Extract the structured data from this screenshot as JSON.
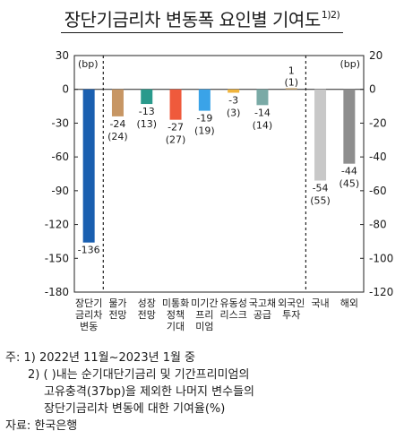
{
  "title": "장단기금리차 변동폭 요인별 기여도",
  "title_sup": "1)2)",
  "chart_data": {
    "type": "bar",
    "left_axis": {
      "unit": "(bp)",
      "ylim": [
        -180,
        30
      ],
      "ticks": [
        30,
        0,
        -30,
        -60,
        -90,
        -120,
        -150,
        -180
      ]
    },
    "right_axis": {
      "unit": "(bp)",
      "ylim": [
        -120,
        20
      ],
      "ticks": [
        20,
        0,
        -20,
        -40,
        -60,
        -80,
        -100,
        -120
      ]
    },
    "bars": [
      {
        "category": "장단기\n금리차\n변동",
        "value": -136,
        "label": "-136",
        "sublabel": "",
        "axis": "left",
        "color": "#1a5fb0"
      },
      {
        "category": "물가\n전망",
        "value": -24,
        "label": "-24",
        "sublabel": "(24)",
        "axis": "left",
        "color": "#c79664"
      },
      {
        "category": "성장\n전망",
        "value": -13,
        "label": "-13",
        "sublabel": "(13)",
        "axis": "left",
        "color": "#2a9a8c"
      },
      {
        "category": "미통화\n정책\n기대",
        "value": -27,
        "label": "-27",
        "sublabel": "(27)",
        "axis": "left",
        "color": "#ef5a3c"
      },
      {
        "category": "미기간\n프리\n미엄",
        "value": -19,
        "label": "-19",
        "sublabel": "(19)",
        "axis": "left",
        "color": "#3aa3e8"
      },
      {
        "category": "유동성\n리스크",
        "value": -3,
        "label": "-3",
        "sublabel": "(3)",
        "axis": "left",
        "color": "#f0b43c"
      },
      {
        "category": "국고채\n공급",
        "value": -14,
        "label": "-14",
        "sublabel": "(14)",
        "axis": "left",
        "color": "#7aaaa6"
      },
      {
        "category": "외국인\n투자",
        "value": 1,
        "label": "1",
        "sublabel": "(1)",
        "axis": "left",
        "color": "#c9a46a"
      },
      {
        "category": "국내",
        "value": -54,
        "label": "-54",
        "sublabel": "(55)",
        "axis": "right",
        "color": "#c8c8c8"
      },
      {
        "category": "해외",
        "value": -44,
        "label": "-44",
        "sublabel": "(45)",
        "axis": "right",
        "color": "#8e8e8e"
      }
    ],
    "dashed_separators_after": [
      0,
      7
    ]
  },
  "notes": {
    "note1": "주: 1) 2022년 11월~2023년 1월 중",
    "note2a": "2) ( )내는 순기대단기금리 및 기간프리미엄의",
    "note2b": "고유충격(37bp)을 제외한 나머지 변수들의",
    "note2c": "장단기금리차 변동에 대한 기여율(%)",
    "source": "자료: 한국은행"
  }
}
